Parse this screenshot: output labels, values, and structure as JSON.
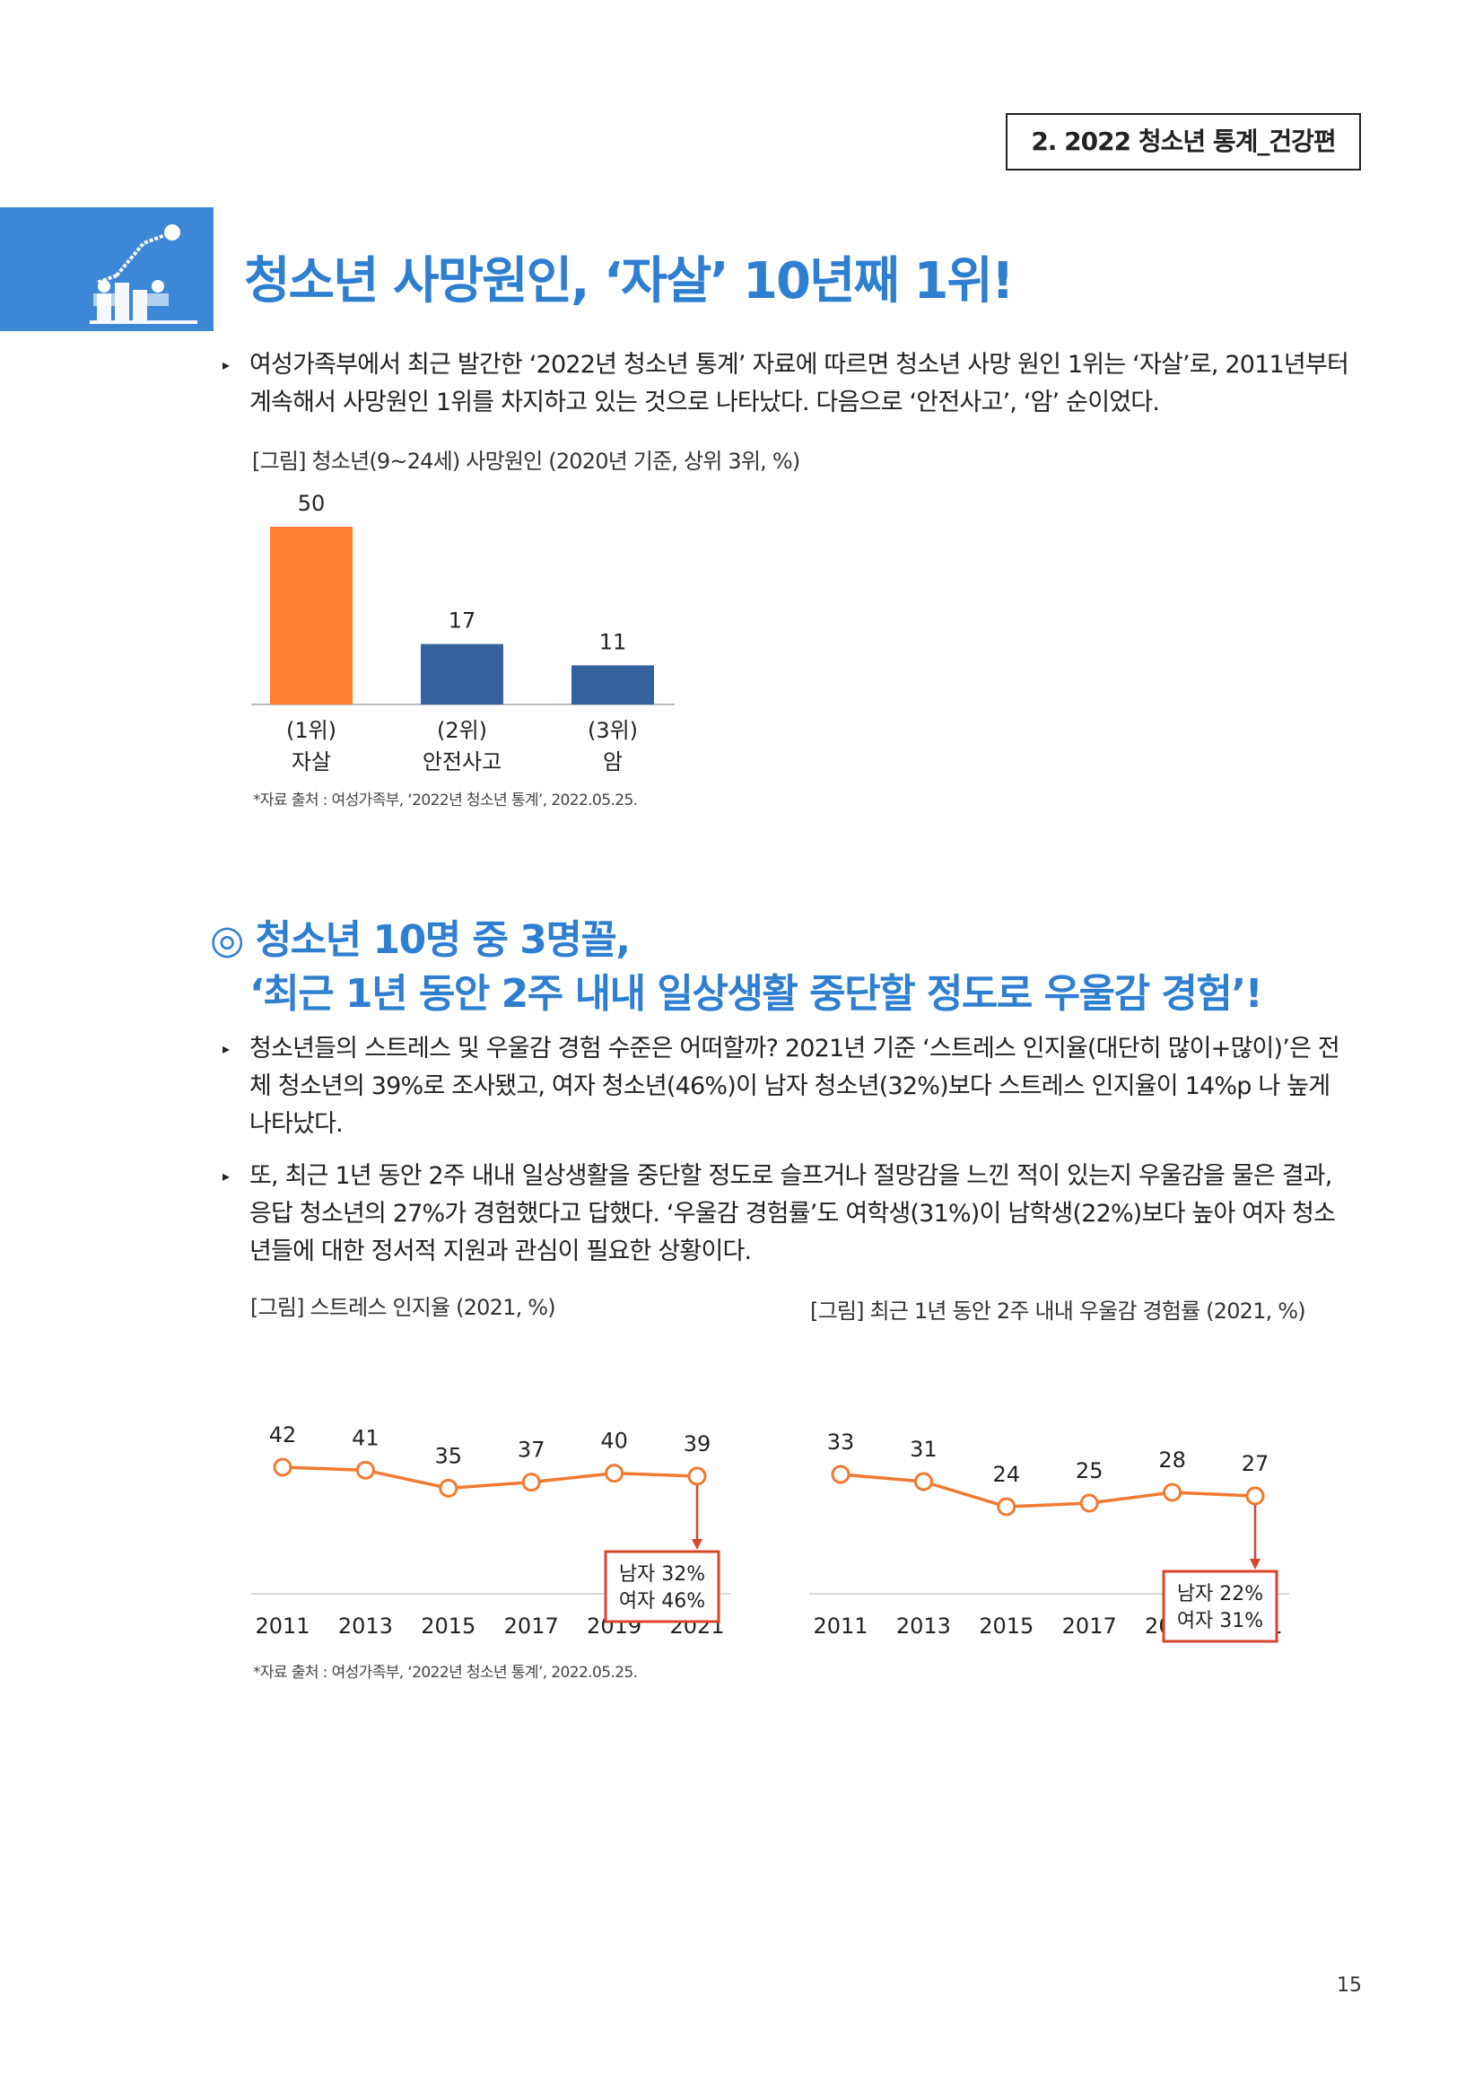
{
  "header": {
    "section_tag": "2. 2022 청소년 통계_건강편"
  },
  "colors": {
    "accent_blue": "#2f7fd1",
    "bar_orange": "#ff7f32",
    "bar_blue": "#35619e",
    "line_orange": "#f07a30",
    "callout_red": "#d9452c"
  },
  "section1": {
    "icon": "chart-people-icon",
    "title": "청소년 사망원인, ‘자살’ 10년째 1위!",
    "paragraph": "여성가족부에서 최근 발간한 ‘2022년 청소년 통계’ 자료에 따르면 청소년 사망 원인 1위는 ‘자살’로, 2011년부터 계속해서 사망원인 1위를 차지하고 있는 것으로 나타났다. 다음으로 ‘안전사고’, ‘암’ 순이었다.",
    "figure_caption": "[그림] 청소년(9~24세) 사망원인 (2020년 기준, 상위 3위, %)",
    "source": "*자료 출처 : 여성가족부, ‘2022년 청소년 통계’, 2022.05.25."
  },
  "section2": {
    "title_line1": "◎ 청소년 10명 중 3명꼴,",
    "title_line2": "‘최근 1년 동안 2주 내내 일상생활 중단할 정도로 우울감 경험’!",
    "paragraph1": "청소년들의 스트레스 및 우울감 경험 수준은 어떠할까? 2021년 기준 ‘스트레스 인지율(대단히 많이+많이)’은 전체 청소년의 39%로 조사됐고, 여자 청소년(46%)이 남자 청소년(32%)보다 스트레스 인지율이 14%p 나 높게 나타났다.",
    "paragraph2": "또, 최근 1년 동안 2주 내내 일상생활을 중단할 정도로 슬프거나 절망감을 느낀 적이 있는지 우울감을 물은 결과, 응답 청소년의 27%가 경험했다고 답했다. ‘우울감 경험률’도 여학생(31%)이 남학생(22%)보다 높아 여자 청소년들에 대한 정서적 지원과 관심이 필요한 상황이다.",
    "figure_caption_left": "[그림] 스트레스 인지율 (2021, %)",
    "figure_caption_right": "[그림] 최근 1년 동안 2주 내내 우울감 경험률 (2021, %)",
    "source": "*자료 출처 : 여성가족부, ‘2022년 청소년 통계’, 2022.05.25."
  },
  "chart_data": [
    {
      "type": "bar",
      "title": "",
      "categories": [
        "(1위)\n자살",
        "(2위)\n안전사고",
        "(3위)\n암"
      ],
      "category_rank": [
        "(1위)",
        "(2위)",
        "(3위)"
      ],
      "category_name": [
        "자살",
        "안전사고",
        "암"
      ],
      "values": [
        50,
        17,
        11
      ],
      "colors": [
        "#ff7f32",
        "#35619e",
        "#35619e"
      ],
      "ylim": [
        0,
        50
      ],
      "grid": false
    },
    {
      "type": "line",
      "title": "",
      "x": [
        "2011",
        "2013",
        "2015",
        "2017",
        "2019",
        "2021"
      ],
      "values": [
        42,
        41,
        35,
        37,
        40,
        39
      ],
      "ylim": [
        0,
        60
      ],
      "callout": {
        "line1": "남자 32%",
        "line2": "여자 46%"
      },
      "grid": false
    },
    {
      "type": "line",
      "title": "",
      "x": [
        "2011",
        "2013",
        "2015",
        "2017",
        "2019",
        "2021"
      ],
      "values": [
        33,
        31,
        24,
        25,
        28,
        27
      ],
      "ylim": [
        0,
        50
      ],
      "callout": {
        "line1": "남자 22%",
        "line2": "여자 31%"
      },
      "grid": false
    }
  ],
  "page_number": "15"
}
